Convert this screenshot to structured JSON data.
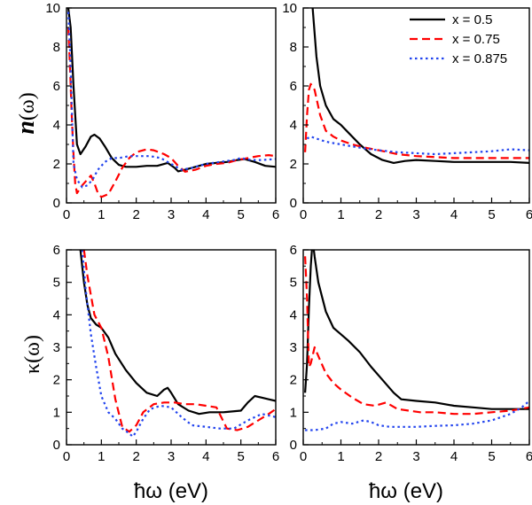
{
  "colors": {
    "x05": "#000000",
    "x075": "#ff0000",
    "x0875": "#2244ee"
  },
  "legend": [
    {
      "label": "x = 0.5",
      "color": "#000000",
      "dash": "solid"
    },
    {
      "label": "x = 0.75",
      "color": "#ff0000",
      "dash": "dashed"
    },
    {
      "label": "x = 0.875",
      "color": "#2244ee",
      "dash": "dotted"
    }
  ],
  "x_axis_title": "ħω (eV)",
  "y_axis_titles": {
    "n_symbol": "n",
    "n_rest": "(ω)",
    "kappa": "κ(ω)"
  },
  "chart_data": [
    {
      "type": "line",
      "panel": "top-left",
      "xlim": [
        0,
        6
      ],
      "ylim": [
        0,
        10
      ],
      "xticks": [
        0,
        1,
        2,
        3,
        4,
        5,
        6
      ],
      "yticks": [
        0,
        2,
        4,
        6,
        8,
        10
      ],
      "ylabel": "n(ω)",
      "xlabel": "",
      "series": [
        {
          "name": "x = 0.5",
          "x": [
            0.05,
            0.12,
            0.2,
            0.3,
            0.4,
            0.55,
            0.7,
            0.8,
            0.95,
            1.1,
            1.3,
            1.5,
            1.7,
            2.0,
            2.3,
            2.6,
            2.9,
            3.1,
            3.2,
            3.4,
            3.7,
            4.0,
            4.3,
            4.6,
            4.9,
            5.1,
            5.4,
            5.7,
            6.0
          ],
          "y": [
            10,
            9,
            6,
            3.0,
            2.5,
            2.9,
            3.4,
            3.5,
            3.3,
            2.9,
            2.3,
            1.95,
            1.85,
            1.85,
            1.9,
            1.9,
            2.05,
            1.8,
            1.62,
            1.7,
            1.85,
            2.0,
            2.05,
            2.1,
            2.2,
            2.25,
            2.1,
            1.9,
            1.85
          ]
        },
        {
          "name": "x = 0.75",
          "x": [
            0.05,
            0.1,
            0.15,
            0.2,
            0.25,
            0.3,
            0.45,
            0.6,
            0.7,
            0.8,
            0.9,
            1.0,
            1.2,
            1.4,
            1.6,
            1.8,
            2.0,
            2.3,
            2.5,
            2.8,
            3.0,
            3.2,
            3.4,
            3.7,
            4.0,
            4.3,
            4.6,
            4.9,
            5.2,
            5.5,
            5.8,
            6.0
          ],
          "y": [
            9,
            7,
            4.5,
            2.5,
            1.0,
            0.5,
            0.9,
            1.2,
            1.4,
            1.0,
            0.5,
            0.3,
            0.45,
            1.1,
            1.8,
            2.3,
            2.6,
            2.75,
            2.7,
            2.5,
            2.3,
            1.9,
            1.6,
            1.7,
            1.9,
            2.0,
            2.05,
            2.2,
            2.3,
            2.4,
            2.45,
            2.4
          ]
        },
        {
          "name": "x = 0.875",
          "x": [
            0.05,
            0.1,
            0.15,
            0.2,
            0.3,
            0.45,
            0.6,
            0.75,
            0.9,
            1.1,
            1.3,
            1.5,
            1.8,
            2.1,
            2.4,
            2.7,
            3.0,
            3.3,
            3.6,
            4.0,
            4.4,
            4.8,
            5.0,
            5.3,
            5.6,
            6.0
          ],
          "y": [
            9.8,
            8,
            5,
            2.0,
            1.2,
            0.8,
            0.9,
            1.2,
            1.7,
            2.1,
            2.3,
            2.3,
            2.4,
            2.4,
            2.4,
            2.3,
            2.0,
            1.7,
            1.8,
            2.0,
            2.1,
            2.2,
            2.3,
            2.2,
            2.2,
            2.25
          ]
        }
      ]
    },
    {
      "type": "line",
      "panel": "top-right",
      "xlim": [
        0,
        6
      ],
      "ylim": [
        0,
        10
      ],
      "xticks": [
        0,
        1,
        2,
        3,
        4,
        5,
        6
      ],
      "yticks": [
        0,
        2,
        4,
        6,
        8,
        10
      ],
      "ylabel": "",
      "xlabel": "",
      "series": [
        {
          "name": "x = 0.5",
          "x": [
            0.25,
            0.35,
            0.45,
            0.6,
            0.8,
            1.0,
            1.2,
            1.5,
            1.8,
            2.1,
            2.4,
            2.7,
            3.0,
            3.5,
            4.0,
            4.5,
            5.0,
            5.5,
            6.0
          ],
          "y": [
            10,
            7.5,
            6.0,
            5.0,
            4.3,
            4.0,
            3.6,
            3.0,
            2.5,
            2.2,
            2.05,
            2.15,
            2.2,
            2.15,
            2.1,
            2.1,
            2.1,
            2.1,
            2.05
          ]
        },
        {
          "name": "x = 0.75",
          "x": [
            0.05,
            0.1,
            0.15,
            0.2,
            0.3,
            0.45,
            0.6,
            0.8,
            1.0,
            1.3,
            1.6,
            2.0,
            2.5,
            3.0,
            3.5,
            4.0,
            4.5,
            5.0,
            5.5,
            6.0
          ],
          "y": [
            2.6,
            4.5,
            5.8,
            6.1,
            5.8,
            4.5,
            3.7,
            3.4,
            3.2,
            3.0,
            2.85,
            2.7,
            2.5,
            2.4,
            2.35,
            2.3,
            2.3,
            2.3,
            2.3,
            2.3
          ]
        },
        {
          "name": "x = 0.875",
          "x": [
            0.1,
            0.2,
            0.35,
            0.5,
            0.7,
            1.0,
            1.3,
            1.6,
            2.0,
            2.5,
            3.0,
            3.5,
            4.0,
            4.5,
            5.0,
            5.5,
            6.0
          ],
          "y": [
            3.3,
            3.4,
            3.3,
            3.2,
            3.1,
            3.0,
            2.9,
            2.8,
            2.7,
            2.6,
            2.55,
            2.5,
            2.55,
            2.6,
            2.65,
            2.75,
            2.7
          ]
        }
      ]
    },
    {
      "type": "line",
      "panel": "bottom-left",
      "xlim": [
        0,
        6
      ],
      "ylim": [
        0,
        6
      ],
      "xticks": [
        0,
        1,
        2,
        3,
        4,
        5,
        6
      ],
      "yticks": [
        0,
        1,
        2,
        3,
        4,
        5,
        6
      ],
      "ylabel": "κ(ω)",
      "xlabel": "ħω (eV)",
      "series": [
        {
          "name": "x = 0.5",
          "x": [
            0.4,
            0.5,
            0.6,
            0.7,
            0.85,
            1.0,
            1.2,
            1.4,
            1.7,
            2.0,
            2.3,
            2.6,
            2.8,
            2.9,
            3.0,
            3.2,
            3.5,
            3.8,
            4.1,
            4.5,
            5.0,
            5.2,
            5.4,
            5.6,
            5.8,
            6.0
          ],
          "y": [
            6.0,
            5.0,
            4.3,
            3.9,
            3.7,
            3.6,
            3.3,
            2.8,
            2.3,
            1.9,
            1.6,
            1.5,
            1.7,
            1.75,
            1.6,
            1.25,
            1.05,
            0.95,
            1.0,
            1.0,
            1.05,
            1.3,
            1.5,
            1.45,
            1.4,
            1.35
          ]
        },
        {
          "name": "x = 0.75",
          "x": [
            0.5,
            0.6,
            0.8,
            1.0,
            1.2,
            1.4,
            1.6,
            1.8,
            2.0,
            2.2,
            2.5,
            2.8,
            3.1,
            3.4,
            3.7,
            4.0,
            4.3,
            4.6,
            4.9,
            5.2,
            5.5,
            5.8,
            6.0
          ],
          "y": [
            6.0,
            5.2,
            4.0,
            3.6,
            2.7,
            1.4,
            0.55,
            0.4,
            0.6,
            1.0,
            1.25,
            1.3,
            1.3,
            1.25,
            1.25,
            1.2,
            1.15,
            0.5,
            0.45,
            0.55,
            0.75,
            0.95,
            1.1
          ]
        },
        {
          "name": "x = 0.875",
          "x": [
            0.45,
            0.55,
            0.7,
            0.85,
            1.0,
            1.2,
            1.4,
            1.6,
            1.8,
            1.9,
            2.0,
            2.2,
            2.4,
            2.7,
            3.0,
            3.3,
            3.6,
            4.0,
            4.4,
            4.8,
            5.2,
            5.6,
            6.0
          ],
          "y": [
            6.0,
            4.8,
            3.4,
            2.4,
            1.5,
            1.0,
            0.8,
            0.5,
            0.35,
            0.25,
            0.4,
            0.8,
            1.1,
            1.2,
            1.15,
            0.85,
            0.6,
            0.55,
            0.5,
            0.5,
            0.75,
            0.95,
            0.85
          ]
        }
      ]
    },
    {
      "type": "line",
      "panel": "bottom-right",
      "xlim": [
        0,
        6
      ],
      "ylim": [
        0,
        6
      ],
      "xticks": [
        0,
        1,
        2,
        3,
        4,
        5,
        6
      ],
      "yticks": [
        0,
        1,
        2,
        3,
        4,
        5,
        6
      ],
      "ylabel": "",
      "xlabel": "ħω (eV)",
      "series": [
        {
          "name": "x = 0.5",
          "x": [
            0.05,
            0.1,
            0.15,
            0.2,
            0.25,
            0.3,
            0.4,
            0.6,
            0.8,
            1.0,
            1.2,
            1.5,
            1.8,
            2.1,
            2.4,
            2.6,
            3.0,
            3.5,
            4.0,
            4.5,
            5.0,
            5.5,
            6.0
          ],
          "y": [
            1.6,
            2.5,
            4.2,
            5.5,
            6.3,
            5.8,
            5.0,
            4.1,
            3.6,
            3.4,
            3.2,
            2.85,
            2.4,
            2.0,
            1.6,
            1.4,
            1.35,
            1.3,
            1.2,
            1.15,
            1.1,
            1.1,
            1.1
          ]
        },
        {
          "name": "x = 0.75",
          "x": [
            0.05,
            0.1,
            0.15,
            0.2,
            0.3,
            0.45,
            0.6,
            0.8,
            1.0,
            1.3,
            1.6,
            1.9,
            2.2,
            2.5,
            2.8,
            3.1,
            3.5,
            4.0,
            4.5,
            5.0,
            5.5,
            6.0
          ],
          "y": [
            5.8,
            4.5,
            2.4,
            2.5,
            3.0,
            2.6,
            2.2,
            1.9,
            1.7,
            1.45,
            1.25,
            1.2,
            1.3,
            1.1,
            1.05,
            1.0,
            1.0,
            0.95,
            0.95,
            1.0,
            1.05,
            1.15
          ]
        },
        {
          "name": "x = 0.875",
          "x": [
            0.05,
            0.3,
            0.6,
            0.8,
            1.0,
            1.3,
            1.6,
            1.8,
            2.0,
            2.3,
            2.6,
            3.0,
            3.5,
            4.0,
            4.5,
            5.0,
            5.5,
            5.8,
            6.0
          ],
          "y": [
            0.45,
            0.45,
            0.5,
            0.65,
            0.7,
            0.65,
            0.75,
            0.7,
            0.6,
            0.55,
            0.55,
            0.55,
            0.58,
            0.6,
            0.65,
            0.75,
            0.95,
            1.15,
            1.35
          ]
        }
      ]
    }
  ]
}
